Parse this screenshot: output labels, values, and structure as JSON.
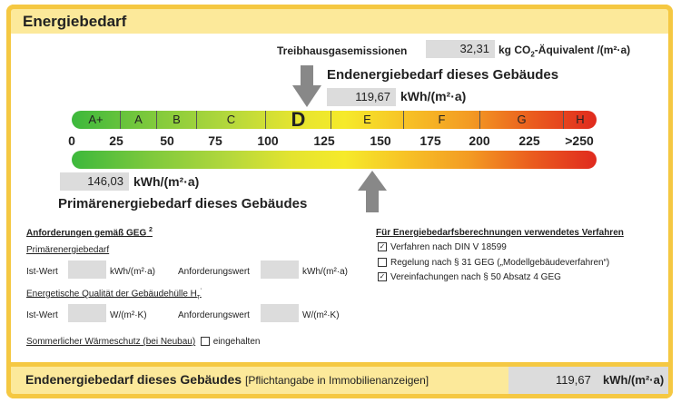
{
  "header": {
    "title": "Energiebedarf"
  },
  "emissions": {
    "label": "Treibhausgasemissionen",
    "value": "32,31",
    "unit_prefix": "kg CO",
    "unit_sub": "2",
    "unit_suffix": "-Äquivalent /(m²·a)"
  },
  "end_energy": {
    "heading": "Endenergiebedarf dieses Gebäudes",
    "value": "119,67",
    "unit": "kWh/(m²·a)"
  },
  "scale": {
    "classes": [
      "A+",
      "A",
      "B",
      "C",
      "D",
      "E",
      "F",
      "G",
      "H"
    ],
    "active_class": "D",
    "ticks": [
      "0",
      "25",
      "50",
      "75",
      "100",
      "125",
      "150",
      "175",
      "200",
      "225",
      ">250"
    ]
  },
  "primary_energy": {
    "value": "146,03",
    "unit": "kWh/(m²·a)",
    "heading": "Primärenergiebedarf dieses Gebäudes"
  },
  "requirements": {
    "title": "Anforderungen gemäß GEG",
    "title_sup": "2",
    "primary_title": "Primärenergiebedarf",
    "ist_label": "Ist-Wert",
    "unit_kwh": "kWh/(m²·a)",
    "anf_label": "Anforderungswert",
    "envelope_title": "Energetische Qualität der Gebäudehülle H",
    "envelope_sub": "T",
    "envelope_sup": "'",
    "unit_w": "W/(m²·K)",
    "summer_label": "Sommerlicher Wärmeschutz (bei Neubau)",
    "summer_value": "eingehalten"
  },
  "procedure": {
    "title": "Für Energiebedarfsberechnungen verwendetes Verfahren",
    "items": [
      {
        "label": "Verfahren nach DIN V 18599",
        "checked": true
      },
      {
        "label": "Regelung nach § 31 GEG („Modellgebäudeverfahren“)",
        "checked": false
      },
      {
        "label": "Vereinfachungen nach § 50 Absatz 4 GEG",
        "checked": true
      }
    ]
  },
  "footer": {
    "label": "Endenergiebedarf dieses Gebäudes",
    "note": "[Pflichtangabe in Immobilienanzeigen]",
    "value": "119,67",
    "unit": "kWh/(m²·a)"
  }
}
